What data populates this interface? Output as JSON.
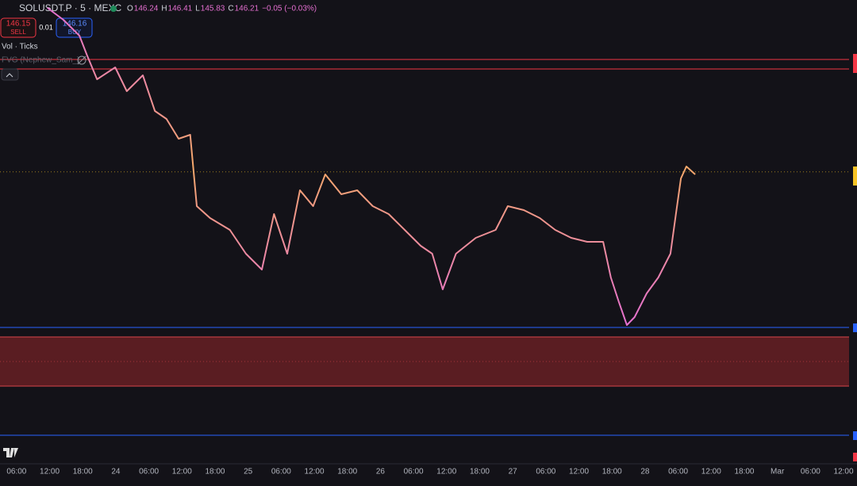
{
  "header": {
    "symbol": "SOLUSDT.P · 5 · MEXC",
    "ohlc": [
      {
        "label": "O",
        "value": "146.24"
      },
      {
        "label": "H",
        "value": "146.41"
      },
      {
        "label": "L",
        "value": "145.83"
      },
      {
        "label": "C",
        "value": "146.21"
      }
    ],
    "change": "−0.05 (−0.03%)",
    "sell": {
      "price": "146.15",
      "label": "SELL"
    },
    "spread": "0.01",
    "buy": {
      "price": "146.16",
      "label": "BUY"
    },
    "indicators": [
      "Vol · Ticks",
      "FVG (Nephew_Sam_)"
    ]
  },
  "chart_data": {
    "type": "line",
    "color": "#e46fd0",
    "color2": "#f4a86a",
    "x": [
      5.6,
      8.5,
      11.4,
      12.8,
      14.6,
      17.9,
      20.0,
      22.9,
      25.1,
      27.2,
      29.4,
      31.5,
      32.7,
      35.1,
      38.7,
      41.6,
      44.5,
      46.7,
      49.1,
      51.4,
      53.8,
      56.0,
      58.9,
      61.8,
      64.6,
      67.5,
      70.4,
      73.3,
      75.4,
      77.3,
      79.7,
      83.3,
      86.9,
      89.1,
      92.0,
      94.9,
      97.7,
      100.6,
      103.5,
      106.4,
      107.8,
      109.2,
      110.7,
      112.1,
      114.3,
      116.4,
      118.6,
      119.6,
      120.5,
      121.5,
      123.1
    ],
    "values": [
      156.55,
      155.8,
      154.8,
      153.55,
      152.05,
      152.8,
      151.3,
      152.3,
      150.05,
      149.55,
      148.3,
      148.55,
      144.05,
      143.3,
      142.55,
      141.05,
      140.05,
      143.55,
      141.05,
      145.05,
      144.05,
      146.05,
      144.8,
      145.05,
      144.05,
      143.55,
      142.55,
      141.55,
      141.05,
      138.8,
      141.05,
      142.05,
      142.55,
      144.05,
      143.8,
      143.3,
      142.55,
      142.05,
      141.8,
      141.8,
      139.55,
      138.05,
      136.55,
      137.05,
      138.55,
      139.55,
      141.05,
      143.55,
      145.8,
      146.55,
      146.05
    ],
    "xlim": [
      -3,
      151
    ],
    "ylim": [
      127.8,
      157.05
    ],
    "xticks": [
      {
        "value": 0,
        "label": "06:00"
      },
      {
        "value": 6,
        "label": "12:00"
      },
      {
        "value": 12,
        "label": "18:00"
      },
      {
        "value": 18,
        "label": "24"
      },
      {
        "value": 24,
        "label": "06:00"
      },
      {
        "value": 30,
        "label": "12:00"
      },
      {
        "value": 36,
        "label": "18:00"
      },
      {
        "value": 42,
        "label": "25"
      },
      {
        "value": 48,
        "label": "06:00"
      },
      {
        "value": 54,
        "label": "12:00"
      },
      {
        "value": 60,
        "label": "18:00"
      },
      {
        "value": 66,
        "label": "26"
      },
      {
        "value": 72,
        "label": "06:00"
      },
      {
        "value": 78,
        "label": "12:00"
      },
      {
        "value": 84,
        "label": "18:00"
      },
      {
        "value": 90,
        "label": "27"
      },
      {
        "value": 96,
        "label": "06:00"
      },
      {
        "value": 102,
        "label": "12:00"
      },
      {
        "value": 108,
        "label": "18:00"
      },
      {
        "value": 114,
        "label": "28"
      },
      {
        "value": 120,
        "label": "06:00"
      },
      {
        "value": 126,
        "label": "12:00"
      },
      {
        "value": 132,
        "label": "18:00"
      },
      {
        "value": 138,
        "label": "Mar"
      },
      {
        "value": 144,
        "label": "06:00"
      },
      {
        "value": 150,
        "label": "12:00"
      }
    ],
    "levels": [
      {
        "value": 153.3,
        "color": "#f23645"
      },
      {
        "value": 152.7,
        "color": "#f23645"
      },
      {
        "value": 136.4,
        "color": "#2962ff"
      }
    ],
    "last": {
      "value": 146.21,
      "color": "#f7c325"
    },
    "zone": {
      "from": 132.7,
      "to": 135.8,
      "color": "#5a1d22",
      "edge": "#d8454b"
    }
  }
}
